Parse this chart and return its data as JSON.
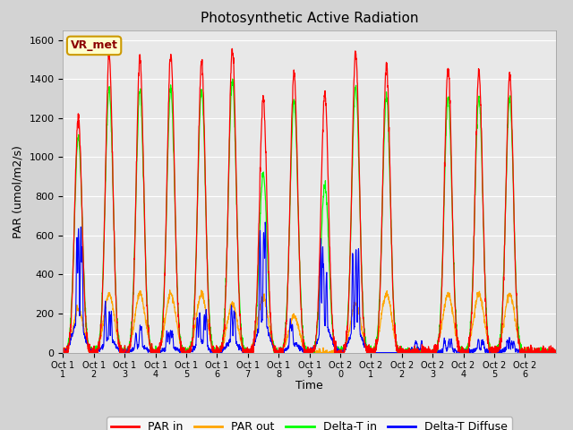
{
  "title": "Photosynthetic Active Radiation",
  "ylabel": "PAR (umol/m2/s)",
  "xlabel": "Time",
  "ylim": [
    0,
    1650
  ],
  "yticks": [
    0,
    200,
    400,
    600,
    800,
    1000,
    1200,
    1400,
    1600
  ],
  "fig_bg_color": "#d3d3d3",
  "plot_bg": "#e8e8e8",
  "watermark": "VR_met",
  "x_tick_labels": [
    "Oct 1\n1",
    "Oct 1\n2",
    "Oct 1\n3",
    "Oct 1\n4",
    "Oct 1\n5",
    "Oct 1\n6",
    "Oct 1\n7",
    "Oct 1\n8",
    "Oct 1\n9",
    "Oct 2\n0",
    "Oct 2\n1",
    "Oct 2\n2",
    "Oct 2\n3",
    "Oct 2\n4",
    "Oct 2\n5",
    "Oct 2\n6"
  ],
  "num_days": 16,
  "series_colors": {
    "PAR_in": "#ff0000",
    "PAR_out": "#ffa500",
    "Delta_T_in": "#00ff00",
    "Delta_T_Diffuse": "#0000ff"
  },
  "day_peaks": {
    "PAR_in": [
      1200,
      1520,
      1500,
      1530,
      1490,
      1550,
      1300,
      1430,
      1330,
      1540,
      1470,
      0,
      1460,
      1440,
      1420,
      0
    ],
    "PAR_out": [
      220,
      300,
      300,
      300,
      300,
      250,
      280,
      190,
      0,
      250,
      300,
      0,
      300,
      300,
      300,
      0
    ],
    "Delta_T_in": [
      1100,
      1350,
      1340,
      1350,
      1340,
      1390,
      920,
      1290,
      860,
      1360,
      1310,
      0,
      1300,
      1300,
      1300,
      0
    ],
    "Delta_T_Diffuse": [
      660,
      270,
      140,
      125,
      220,
      250,
      670,
      180,
      580,
      545,
      0,
      65,
      70,
      75,
      80,
      0
    ]
  }
}
